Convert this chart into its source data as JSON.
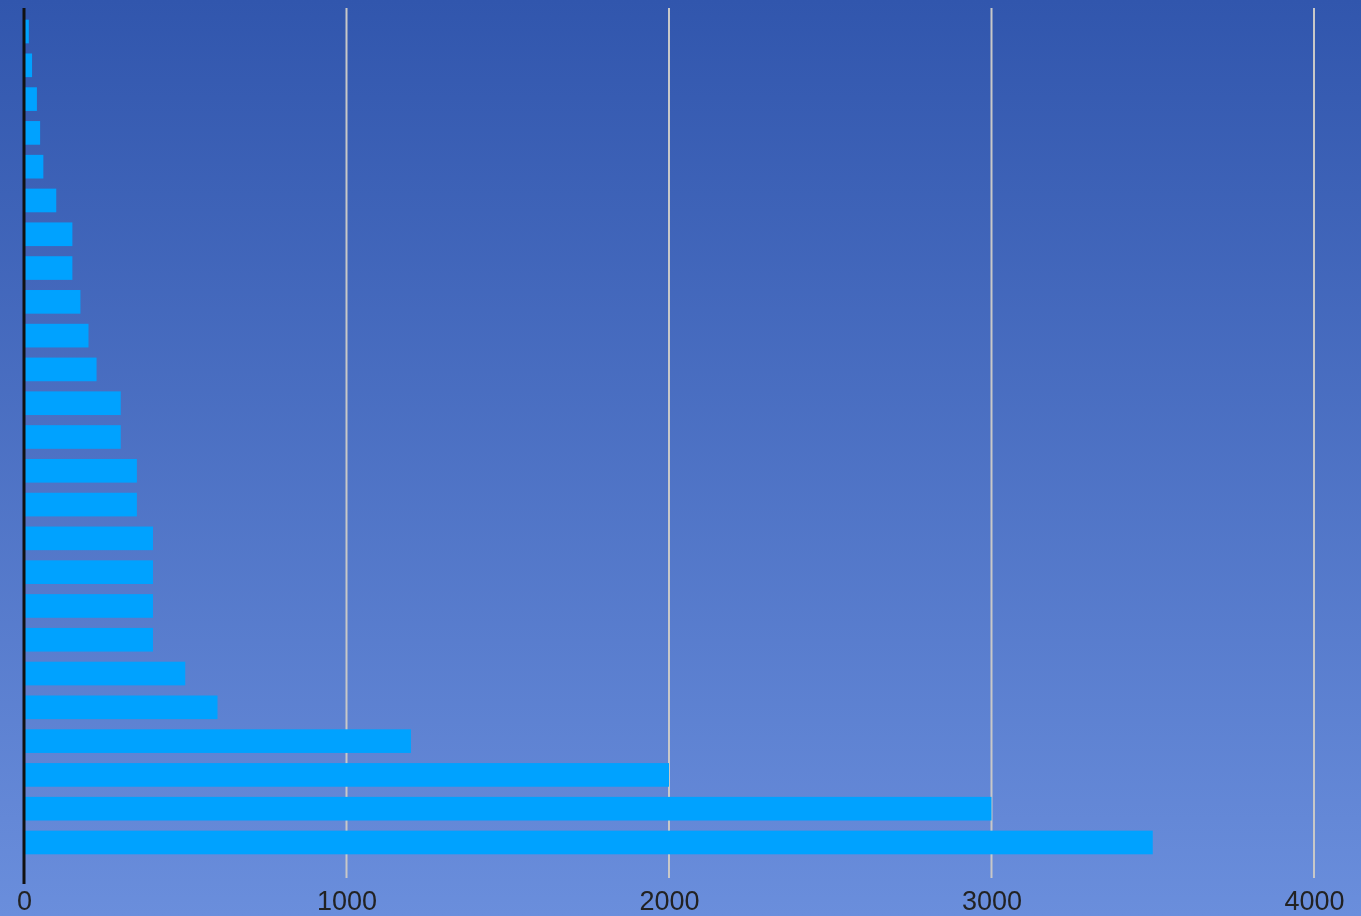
{
  "chart_data": {
    "type": "bar",
    "orientation": "horizontal",
    "categories": [
      null,
      null,
      null,
      null,
      null,
      null,
      null,
      null,
      null,
      null,
      null,
      null,
      null,
      null,
      null,
      null,
      null,
      null,
      null,
      null,
      null,
      null,
      null,
      null,
      null
    ],
    "values": [
      15,
      25,
      40,
      50,
      60,
      100,
      150,
      150,
      175,
      200,
      225,
      300,
      300,
      350,
      350,
      400,
      400,
      400,
      400,
      500,
      600,
      1200,
      2000,
      3000,
      3500
    ],
    "color": "#00a2ff",
    "xlim": [
      0,
      4000
    ],
    "xticks": [
      0,
      1000,
      2000,
      3000,
      4000
    ],
    "grid": "x"
  }
}
